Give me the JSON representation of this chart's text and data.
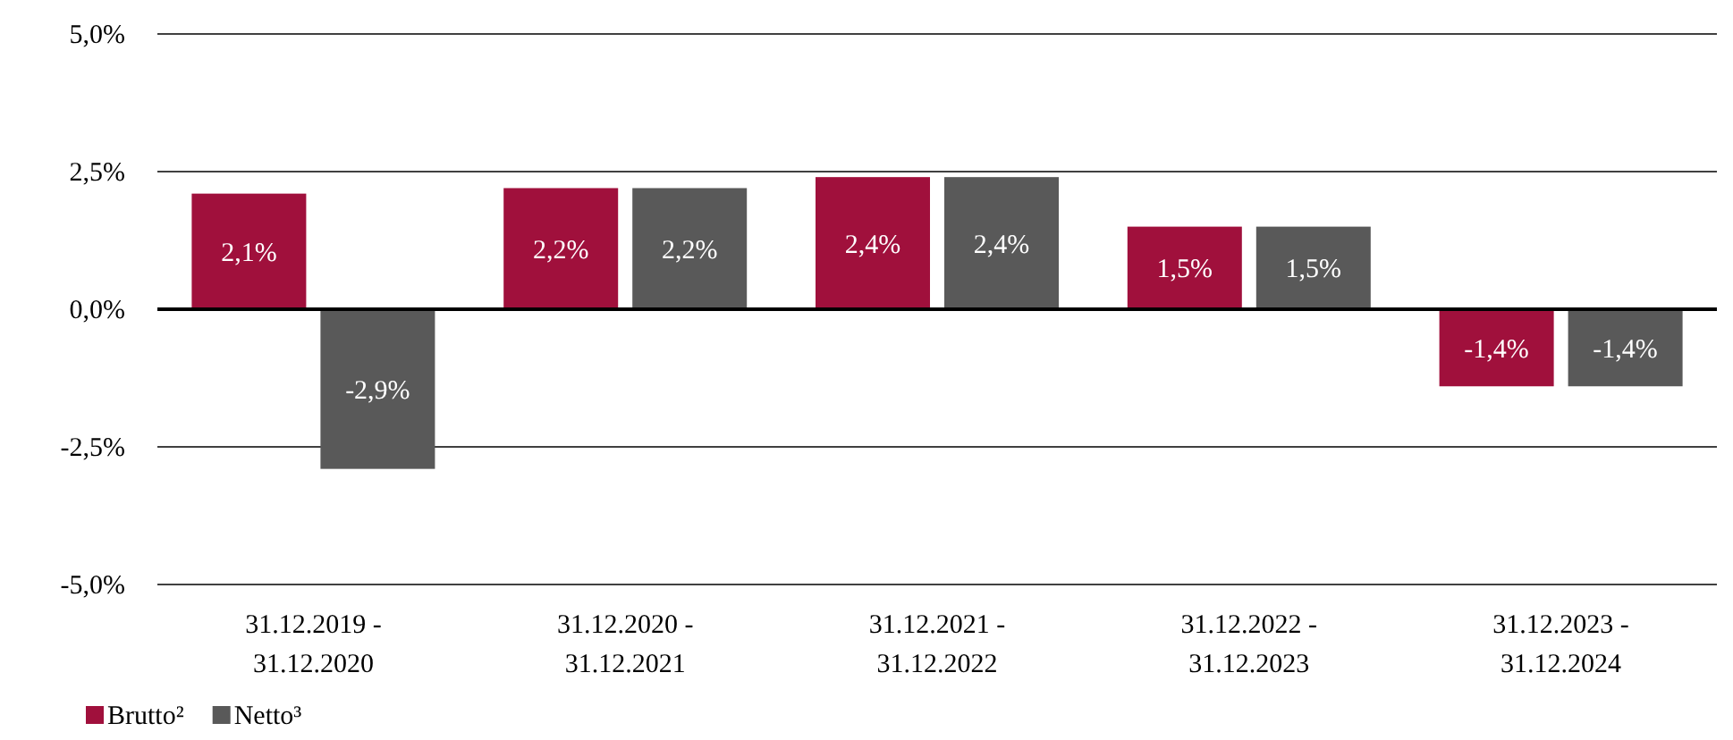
{
  "chart_data": {
    "type": "bar",
    "categories": [
      "31.12.2019 - 31.12.2020",
      "31.12.2020 - 31.12.2021",
      "31.12.2021 - 31.12.2022",
      "31.12.2022 - 31.12.2023",
      "31.12.2023 - 31.12.2024"
    ],
    "series": [
      {
        "name": "Brutto²",
        "color": "#a0103c",
        "values": [
          2.1,
          2.2,
          2.4,
          1.5,
          -1.4
        ],
        "value_labels": [
          "2,1%",
          "2,2%",
          "2,4%",
          "1,5%",
          "-1,4%"
        ]
      },
      {
        "name": "Netto³",
        "color": "#595959",
        "values": [
          -2.9,
          2.2,
          2.4,
          1.5,
          -1.4
        ],
        "value_labels": [
          "-2,9%",
          "2,2%",
          "2,4%",
          "1,5%",
          "-1,4%"
        ]
      }
    ],
    "ylim": [
      -5,
      5
    ],
    "yticks": [
      {
        "value": -5,
        "label": "-5,0%"
      },
      {
        "value": -2.5,
        "label": "-2,5%"
      },
      {
        "value": 0,
        "label": "0,0%"
      },
      {
        "value": 2.5,
        "label": "2,5%"
      },
      {
        "value": 5,
        "label": "5,0%"
      }
    ],
    "grid": "y",
    "legend": "bottom left"
  }
}
